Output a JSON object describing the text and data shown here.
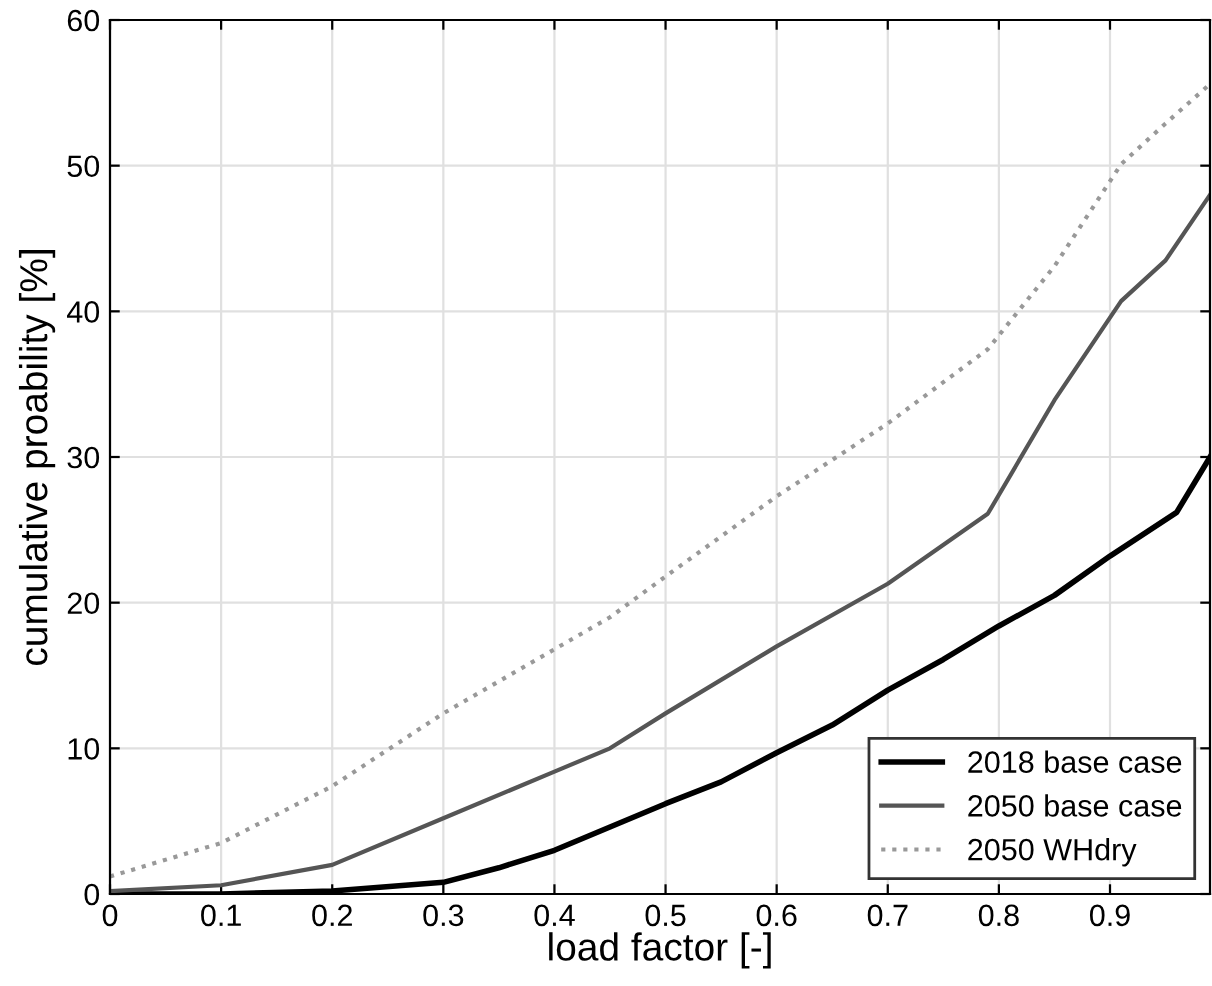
{
  "chart_data": {
    "type": "line",
    "xlabel": "load factor [-]",
    "ylabel": "cumulative proability [%]",
    "xlim": [
      0,
      0.99
    ],
    "ylim": [
      0,
      60
    ],
    "xticks": [
      0,
      0.1,
      0.2,
      0.3,
      0.4,
      0.5,
      0.6,
      0.7,
      0.8,
      0.9
    ],
    "yticks": [
      0,
      10,
      20,
      30,
      40,
      50,
      60
    ],
    "grid": true,
    "legend": "bottom right",
    "series": [
      {
        "name": "2018 base case",
        "color": "#000000",
        "line_style": "solid",
        "x": [
          0,
          0.1,
          0.2,
          0.3,
          0.35,
          0.4,
          0.45,
          0.5,
          0.55,
          0.6,
          0.65,
          0.7,
          0.75,
          0.8,
          0.85,
          0.9,
          0.96,
          0.99
        ],
        "values": [
          0,
          0,
          0.2,
          0.8,
          1.8,
          3.0,
          4.6,
          6.2,
          7.7,
          9.7,
          11.6,
          14.0,
          16.1,
          18.4,
          20.5,
          23.2,
          26.2,
          30
        ]
      },
      {
        "name": "2050 base case",
        "color": "#555555",
        "line_style": "solid",
        "x": [
          0,
          0.1,
          0.2,
          0.3,
          0.4,
          0.45,
          0.5,
          0.6,
          0.7,
          0.79,
          0.85,
          0.91,
          0.95,
          0.99
        ],
        "values": [
          0.2,
          0.6,
          2.0,
          5.2,
          8.4,
          10.0,
          12.4,
          17.0,
          21.3,
          26.1,
          33.9,
          40.7,
          43.5,
          48
        ]
      },
      {
        "name": "2050 WHdry",
        "color": "#999999",
        "line_style": "dotted",
        "x": [
          0,
          0.1,
          0.2,
          0.3,
          0.4,
          0.45,
          0.5,
          0.6,
          0.7,
          0.79,
          0.85,
          0.91,
          0.95,
          0.99
        ],
        "values": [
          1.2,
          3.5,
          7.4,
          12.4,
          16.8,
          19.0,
          21.8,
          27.3,
          32.3,
          37.4,
          43.1,
          50.1,
          52.9,
          55.6
        ]
      }
    ]
  }
}
